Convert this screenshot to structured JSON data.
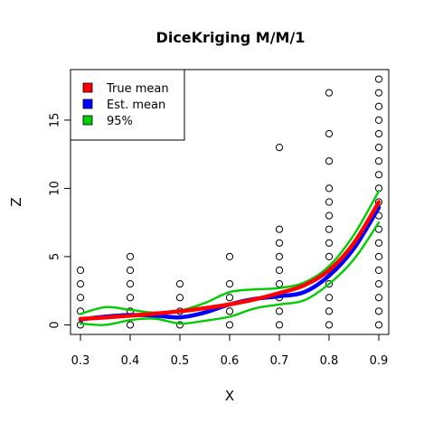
{
  "chart_data": {
    "type": "scatter",
    "title": "DiceKriging M/M/1",
    "xlabel": "X",
    "ylabel": "Z",
    "xlim": [
      0.28,
      0.92
    ],
    "ylim": [
      -0.7,
      18.7
    ],
    "xticks": [
      0.3,
      0.4,
      0.5,
      0.6,
      0.7,
      0.8,
      0.9
    ],
    "yticks": [
      0,
      5,
      10,
      15
    ],
    "grid": false,
    "legend_position": "top-left",
    "points": [
      {
        "x": 0.3,
        "y": 0
      },
      {
        "x": 0.3,
        "y": 1
      },
      {
        "x": 0.3,
        "y": 2
      },
      {
        "x": 0.3,
        "y": 3
      },
      {
        "x": 0.3,
        "y": 4
      },
      {
        "x": 0.4,
        "y": 0
      },
      {
        "x": 0.4,
        "y": 1
      },
      {
        "x": 0.4,
        "y": 2
      },
      {
        "x": 0.4,
        "y": 3
      },
      {
        "x": 0.4,
        "y": 4
      },
      {
        "x": 0.4,
        "y": 5
      },
      {
        "x": 0.5,
        "y": 0
      },
      {
        "x": 0.5,
        "y": 1
      },
      {
        "x": 0.5,
        "y": 2
      },
      {
        "x": 0.5,
        "y": 3
      },
      {
        "x": 0.6,
        "y": 0
      },
      {
        "x": 0.6,
        "y": 1
      },
      {
        "x": 0.6,
        "y": 2
      },
      {
        "x": 0.6,
        "y": 3
      },
      {
        "x": 0.6,
        "y": 5
      },
      {
        "x": 0.7,
        "y": 0
      },
      {
        "x": 0.7,
        "y": 1
      },
      {
        "x": 0.7,
        "y": 2
      },
      {
        "x": 0.7,
        "y": 3
      },
      {
        "x": 0.7,
        "y": 4
      },
      {
        "x": 0.7,
        "y": 5
      },
      {
        "x": 0.7,
        "y": 6
      },
      {
        "x": 0.7,
        "y": 7
      },
      {
        "x": 0.7,
        "y": 13
      },
      {
        "x": 0.8,
        "y": 0
      },
      {
        "x": 0.8,
        "y": 1
      },
      {
        "x": 0.8,
        "y": 2
      },
      {
        "x": 0.8,
        "y": 3
      },
      {
        "x": 0.8,
        "y": 4
      },
      {
        "x": 0.8,
        "y": 5
      },
      {
        "x": 0.8,
        "y": 6
      },
      {
        "x": 0.8,
        "y": 7
      },
      {
        "x": 0.8,
        "y": 8
      },
      {
        "x": 0.8,
        "y": 9
      },
      {
        "x": 0.8,
        "y": 10
      },
      {
        "x": 0.8,
        "y": 12
      },
      {
        "x": 0.8,
        "y": 14
      },
      {
        "x": 0.8,
        "y": 17
      },
      {
        "x": 0.9,
        "y": 0
      },
      {
        "x": 0.9,
        "y": 1
      },
      {
        "x": 0.9,
        "y": 2
      },
      {
        "x": 0.9,
        "y": 3
      },
      {
        "x": 0.9,
        "y": 4
      },
      {
        "x": 0.9,
        "y": 5
      },
      {
        "x": 0.9,
        "y": 6
      },
      {
        "x": 0.9,
        "y": 7
      },
      {
        "x": 0.9,
        "y": 8
      },
      {
        "x": 0.9,
        "y": 9
      },
      {
        "x": 0.9,
        "y": 10
      },
      {
        "x": 0.9,
        "y": 11
      },
      {
        "x": 0.9,
        "y": 12
      },
      {
        "x": 0.9,
        "y": 13
      },
      {
        "x": 0.9,
        "y": 14
      },
      {
        "x": 0.9,
        "y": 15
      },
      {
        "x": 0.9,
        "y": 16
      },
      {
        "x": 0.9,
        "y": 17
      },
      {
        "x": 0.9,
        "y": 18
      }
    ],
    "series": [
      {
        "name": "True mean",
        "color": "#ff0000",
        "x": [
          0.3,
          0.35,
          0.4,
          0.45,
          0.5,
          0.55,
          0.6,
          0.65,
          0.7,
          0.75,
          0.8,
          0.85,
          0.9
        ],
        "y": [
          0.43,
          0.54,
          0.67,
          0.82,
          1.0,
          1.22,
          1.5,
          1.86,
          2.33,
          2.9,
          4.0,
          6.0,
          9.0
        ]
      },
      {
        "name": "Est. mean",
        "color": "#0000ff",
        "x": [
          0.3,
          0.35,
          0.4,
          0.45,
          0.5,
          0.55,
          0.6,
          0.65,
          0.7,
          0.75,
          0.8,
          0.85,
          0.9
        ],
        "y": [
          0.4,
          0.6,
          0.72,
          0.68,
          0.55,
          0.9,
          1.5,
          1.9,
          2.1,
          2.4,
          3.6,
          5.6,
          8.6
        ]
      },
      {
        "name": "95%",
        "color": "#00cc00",
        "x": [
          0.3,
          0.35,
          0.4,
          0.45,
          0.5,
          0.55,
          0.6,
          0.65,
          0.7,
          0.75,
          0.8,
          0.85,
          0.9
        ],
        "y": [
          0.8,
          1.3,
          1.1,
          0.9,
          1.05,
          1.6,
          2.4,
          2.6,
          2.7,
          3.1,
          4.3,
          6.6,
          9.8
        ]
      },
      {
        "name": "95%",
        "color": "#00cc00",
        "x": [
          0.3,
          0.35,
          0.4,
          0.45,
          0.5,
          0.55,
          0.6,
          0.65,
          0.7,
          0.75,
          0.8,
          0.85,
          0.9
        ],
        "y": [
          0.1,
          0.0,
          0.35,
          0.45,
          0.1,
          0.3,
          0.6,
          1.2,
          1.5,
          1.8,
          3.0,
          4.8,
          7.5
        ]
      }
    ],
    "legend": [
      {
        "label": "True mean",
        "color": "#ff0000"
      },
      {
        "label": "Est. mean",
        "color": "#0000ff"
      },
      {
        "label": "95%",
        "color": "#00cc00"
      }
    ]
  }
}
